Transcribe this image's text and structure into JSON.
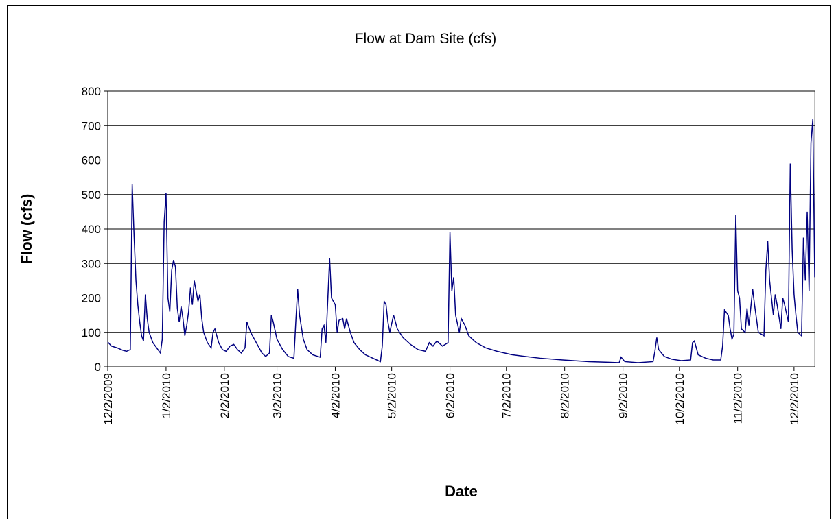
{
  "chart_data": {
    "type": "line",
    "title": "Flow at Dam Site (cfs)",
    "x_label": "Date",
    "y_label": "Flow (cfs)",
    "color": "#000080",
    "grid": true,
    "xlim": [
      "12/2/2009",
      "12/13/2010"
    ],
    "xticks": [
      "12/2/2009",
      "1/2/2010",
      "2/2/2010",
      "3/2/2010",
      "4/2/2010",
      "5/2/2010",
      "6/2/2010",
      "7/2/2010",
      "8/2/2010",
      "9/2/2010",
      "10/2/2010",
      "11/2/2010",
      "12/2/2010"
    ],
    "ylim": [
      0,
      800
    ],
    "yticks": [
      0,
      100,
      200,
      300,
      400,
      500,
      600,
      700,
      800
    ],
    "x": [
      "12/2/2009",
      "12/4/2009",
      "12/7/2009",
      "12/10/2009",
      "12/12/2009",
      "12/14/2009",
      "12/15/2009",
      "12/16/2009",
      "12/17/2009",
      "12/18/2009",
      "12/19/2009",
      "12/20/2009",
      "12/21/2009",
      "12/22/2009",
      "12/23/2009",
      "12/24/2009",
      "12/26/2009",
      "12/28/2009",
      "12/30/2009",
      "12/31/2009",
      "1/1/2010",
      "1/2/2010",
      "1/3/2010",
      "1/4/2010",
      "1/5/2010",
      "1/6/2010",
      "1/7/2010",
      "1/8/2010",
      "1/9/2010",
      "1/10/2010",
      "1/11/2010",
      "1/12/2010",
      "1/13/2010",
      "1/14/2010",
      "1/15/2010",
      "1/16/2010",
      "1/17/2010",
      "1/18/2010",
      "1/19/2010",
      "1/20/2010",
      "1/21/2010",
      "1/22/2010",
      "1/24/2010",
      "1/26/2010",
      "1/27/2010",
      "1/28/2010",
      "1/30/2010",
      "2/1/2010",
      "2/3/2010",
      "2/5/2010",
      "2/7/2010",
      "2/9/2010",
      "2/11/2010",
      "2/13/2010",
      "2/14/2010",
      "2/16/2010",
      "2/18/2010",
      "2/20/2010",
      "2/22/2010",
      "2/24/2010",
      "2/26/2010",
      "2/27/2010",
      "2/28/2010",
      "3/2/2010",
      "3/5/2010",
      "3/8/2010",
      "3/11/2010",
      "3/12/2010",
      "3/13/2010",
      "3/14/2010",
      "3/16/2010",
      "3/18/2010",
      "3/21/2010",
      "3/25/2010",
      "3/26/2010",
      "3/27/2010",
      "3/28/2010",
      "3/30/2010",
      "3/31/2010",
      "4/2/2010",
      "4/3/2010",
      "4/4/2010",
      "4/6/2010",
      "4/7/2010",
      "4/8/2010",
      "4/10/2010",
      "4/12/2010",
      "4/15/2010",
      "4/18/2010",
      "4/22/2010",
      "4/26/2010",
      "4/27/2010",
      "4/28/2010",
      "4/29/2010",
      "4/30/2010",
      "5/1/2010",
      "5/3/2010",
      "5/5/2010",
      "5/8/2010",
      "5/12/2010",
      "5/16/2010",
      "5/20/2010",
      "5/22/2010",
      "5/24/2010",
      "5/26/2010",
      "5/29/2010",
      "6/1/2010",
      "6/2/2010",
      "6/3/2010",
      "6/4/2010",
      "6/5/2010",
      "6/7/2010",
      "6/8/2010",
      "6/10/2010",
      "6/12/2010",
      "6/16/2010",
      "6/21/2010",
      "6/27/2010",
      "7/5/2010",
      "7/12/2010",
      "7/20/2010",
      "8/1/2010",
      "8/15/2010",
      "8/31/2010",
      "9/1/2010",
      "9/3/2010",
      "9/10/2010",
      "9/18/2010",
      "9/19/2010",
      "9/20/2010",
      "9/21/2010",
      "9/24/2010",
      "9/28/2010",
      "10/3/2010",
      "10/8/2010",
      "10/9/2010",
      "10/10/2010",
      "10/12/2010",
      "10/16/2010",
      "10/20/2010",
      "10/24/2010",
      "10/25/2010",
      "10/26/2010",
      "10/28/2010",
      "10/29/2010",
      "10/30/2010",
      "10/31/2010",
      "11/1/2010",
      "11/2/2010",
      "11/3/2010",
      "11/4/2010",
      "11/6/2010",
      "11/7/2010",
      "11/8/2010",
      "11/10/2010",
      "11/11/2010",
      "11/13/2010",
      "11/16/2010",
      "11/17/2010",
      "11/18/2010",
      "11/19/2010",
      "11/20/2010",
      "11/21/2010",
      "11/22/2010",
      "11/23/2010",
      "11/25/2010",
      "11/26/2010",
      "11/27/2010",
      "11/29/2010",
      "11/30/2010",
      "12/1/2010",
      "12/2/2010",
      "12/3/2010",
      "12/4/2010",
      "12/6/2010",
      "12/7/2010",
      "12/8/2010",
      "12/9/2010",
      "12/10/2010",
      "12/11/2010",
      "12/12/2010",
      "12/13/2010"
    ],
    "values": [
      72,
      60,
      55,
      48,
      45,
      50,
      530,
      380,
      250,
      180,
      130,
      90,
      75,
      210,
      140,
      100,
      70,
      55,
      40,
      80,
      420,
      505,
      200,
      160,
      280,
      310,
      290,
      170,
      130,
      175,
      140,
      90,
      120,
      160,
      230,
      180,
      250,
      220,
      190,
      210,
      140,
      100,
      70,
      55,
      100,
      110,
      70,
      50,
      45,
      60,
      65,
      50,
      40,
      55,
      130,
      100,
      80,
      60,
      40,
      30,
      40,
      150,
      130,
      80,
      50,
      30,
      25,
      130,
      225,
      150,
      80,
      50,
      35,
      28,
      110,
      120,
      70,
      315,
      200,
      180,
      100,
      135,
      140,
      110,
      140,
      100,
      70,
      50,
      35,
      25,
      15,
      60,
      190,
      180,
      130,
      100,
      150,
      110,
      85,
      65,
      50,
      45,
      70,
      60,
      75,
      60,
      70,
      390,
      220,
      260,
      150,
      100,
      140,
      120,
      90,
      70,
      55,
      45,
      35,
      30,
      25,
      20,
      15,
      12,
      28,
      15,
      12,
      15,
      45,
      85,
      50,
      30,
      22,
      18,
      20,
      70,
      75,
      35,
      25,
      20,
      20,
      60,
      165,
      150,
      110,
      80,
      95,
      440,
      220,
      200,
      110,
      100,
      170,
      120,
      225,
      180,
      100,
      90,
      280,
      365,
      250,
      200,
      150,
      210,
      180,
      110,
      200,
      180,
      130,
      590,
      340,
      210,
      150,
      100,
      90,
      375,
      250,
      450,
      220,
      650,
      720,
      260
    ]
  }
}
